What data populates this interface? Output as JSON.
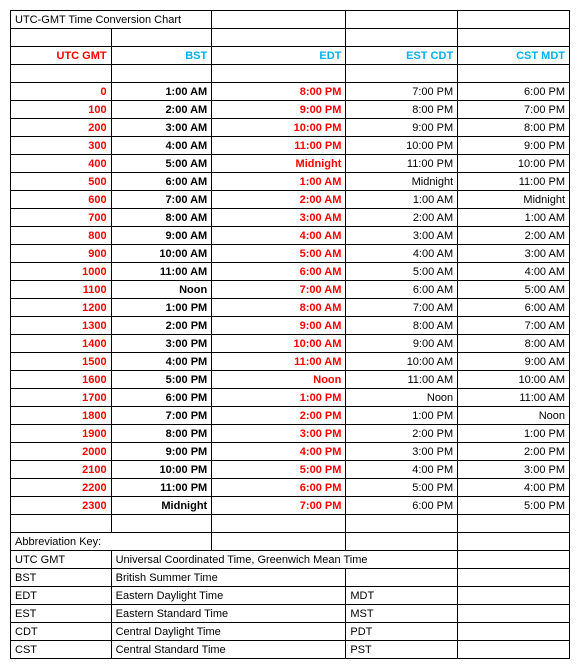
{
  "title": "UTC-GMT Time Conversion Chart",
  "headers": {
    "utc": "UTC GMT",
    "bst": "BST",
    "edt": "EDT",
    "est": "EST CDT",
    "cst": "CST MDT"
  },
  "colors": {
    "header_red": "#ff0000",
    "header_blue": "#00b0f0",
    "border": "#000000",
    "background": "#ffffff"
  },
  "font_size": 11,
  "rows": [
    {
      "utc": "0",
      "bst": "1:00 AM",
      "edt": "8:00 PM",
      "est": "7:00 PM",
      "cst": "6:00 PM"
    },
    {
      "utc": "100",
      "bst": "2:00 AM",
      "edt": "9:00 PM",
      "est": "8:00 PM",
      "cst": "7:00 PM"
    },
    {
      "utc": "200",
      "bst": "3:00 AM",
      "edt": "10:00 PM",
      "est": "9:00 PM",
      "cst": "8:00 PM"
    },
    {
      "utc": "300",
      "bst": "4:00 AM",
      "edt": "11:00 PM",
      "est": "10:00 PM",
      "cst": "9:00 PM"
    },
    {
      "utc": "400",
      "bst": "5:00 AM",
      "edt": "Midnight",
      "est": "11:00 PM",
      "cst": "10:00 PM"
    },
    {
      "utc": "500",
      "bst": "6:00 AM",
      "edt": "1:00 AM",
      "est": "Midnight",
      "cst": "11:00 PM"
    },
    {
      "utc": "600",
      "bst": "7:00 AM",
      "edt": "2:00 AM",
      "est": "1:00 AM",
      "cst": "Midnight"
    },
    {
      "utc": "700",
      "bst": "8:00 AM",
      "edt": "3:00 AM",
      "est": "2:00 AM",
      "cst": "1:00 AM"
    },
    {
      "utc": "800",
      "bst": "9:00 AM",
      "edt": "4:00 AM",
      "est": "3:00 AM",
      "cst": "2:00 AM"
    },
    {
      "utc": "900",
      "bst": "10:00 AM",
      "edt": "5:00 AM",
      "est": "4:00 AM",
      "cst": "3:00 AM"
    },
    {
      "utc": "1000",
      "bst": "11:00 AM",
      "edt": "6:00 AM",
      "est": "5:00 AM",
      "cst": "4:00 AM"
    },
    {
      "utc": "1100",
      "bst": "Noon",
      "edt": "7:00 AM",
      "est": "6:00 AM",
      "cst": "5:00 AM"
    },
    {
      "utc": "1200",
      "bst": "1:00 PM",
      "edt": "8:00 AM",
      "est": "7:00 AM",
      "cst": "6:00 AM"
    },
    {
      "utc": "1300",
      "bst": "2:00 PM",
      "edt": "9:00 AM",
      "est": "8:00 AM",
      "cst": "7:00 AM"
    },
    {
      "utc": "1400",
      "bst": "3:00 PM",
      "edt": "10:00 AM",
      "est": "9:00 AM",
      "cst": "8:00 AM"
    },
    {
      "utc": "1500",
      "bst": "4:00 PM",
      "edt": "11:00 AM",
      "est": "10:00 AM",
      "cst": "9:00 AM"
    },
    {
      "utc": "1600",
      "bst": "5:00 PM",
      "edt": "Noon",
      "est": "11:00 AM",
      "cst": "10:00 AM"
    },
    {
      "utc": "1700",
      "bst": "6:00 PM",
      "edt": "1:00 PM",
      "est": "Noon",
      "cst": "11:00 AM"
    },
    {
      "utc": "1800",
      "bst": "7:00 PM",
      "edt": "2:00 PM",
      "est": "1:00 PM",
      "cst": "Noon"
    },
    {
      "utc": "1900",
      "bst": "8:00 PM",
      "edt": "3:00 PM",
      "est": "2:00 PM",
      "cst": "1:00 PM"
    },
    {
      "utc": "2000",
      "bst": "9:00 PM",
      "edt": "4:00 PM",
      "est": "3:00 PM",
      "cst": "2:00 PM"
    },
    {
      "utc": "2100",
      "bst": "10:00 PM",
      "edt": "5:00 PM",
      "est": "4:00 PM",
      "cst": "3:00 PM"
    },
    {
      "utc": "2200",
      "bst": "11:00 PM",
      "edt": "6:00 PM",
      "est": "5:00 PM",
      "cst": "4:00 PM"
    },
    {
      "utc": "2300",
      "bst": "Midnight",
      "edt": "7:00 PM",
      "est": "6:00 PM",
      "cst": "5:00 PM"
    }
  ],
  "abbrev_title": "Abbreviation Key:",
  "abbrevs": [
    {
      "k": "UTC GMT",
      "v": "Universal Coordinated Time, Greenwich Mean Time",
      "r": ""
    },
    {
      "k": "BST",
      "v": "British Summer Time",
      "r": ""
    },
    {
      "k": "EDT",
      "v": "Eastern Daylight Time",
      "r": "MDT"
    },
    {
      "k": "EST",
      "v": "Eastern Standard Time",
      "r": "MST"
    },
    {
      "k": "CDT",
      "v": "Central Daylight Time",
      "r": "PDT"
    },
    {
      "k": "CST",
      "v": "Central Standard Time",
      "r": "PST"
    }
  ]
}
